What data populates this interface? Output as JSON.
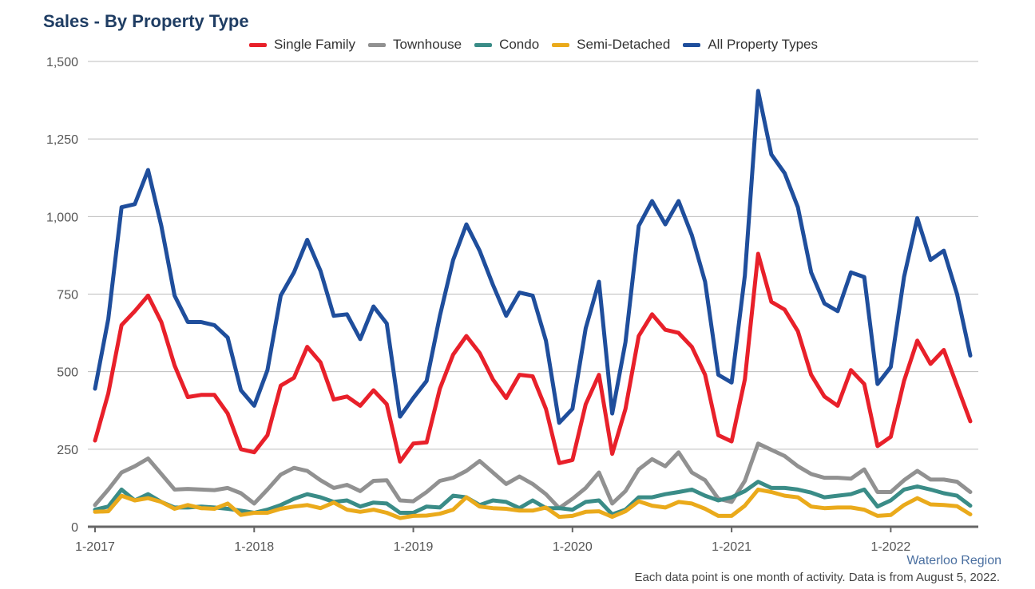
{
  "title": "Sales - By Property Type",
  "source": "Waterloo Region",
  "footnote": "Each data point is one month of activity. Data is from August 5, 2022.",
  "chart_data": {
    "type": "line",
    "title": "Sales - By Property Type",
    "xlabel": "",
    "ylabel": "",
    "ylim": [
      0,
      1500
    ],
    "yticks": [
      0,
      250,
      500,
      750,
      1000,
      1250,
      1500
    ],
    "ytick_labels": [
      "0",
      "250",
      "500",
      "750",
      "1,000",
      "1,250",
      "1,500"
    ],
    "xtick_labels": [
      "1-2017",
      "1-2018",
      "1-2019",
      "1-2020",
      "1-2021",
      "1-2022"
    ],
    "xtick_index": [
      0,
      12,
      24,
      36,
      48,
      60
    ],
    "x_start": "2017-01",
    "x_end": "2022-07",
    "grid": true,
    "legend": "top",
    "series": [
      {
        "name": "Single Family",
        "color": "#e8202a",
        "values": [
          278,
          430,
          650,
          695,
          745,
          660,
          520,
          418,
          425,
          425,
          365,
          250,
          240,
          295,
          455,
          480,
          580,
          530,
          410,
          420,
          390,
          440,
          395,
          210,
          268,
          272,
          445,
          555,
          615,
          560,
          475,
          415,
          490,
          485,
          380,
          205,
          215,
          395,
          490,
          235,
          380,
          615,
          685,
          635,
          625,
          580,
          490,
          295,
          275,
          475,
          880,
          725,
          700,
          630,
          490,
          420,
          390,
          505,
          460,
          260,
          290,
          470,
          600,
          525,
          570,
          455,
          340
        ]
      },
      {
        "name": "Townhouse",
        "color": "#919191",
        "values": [
          70,
          120,
          175,
          195,
          220,
          170,
          120,
          122,
          120,
          118,
          125,
          108,
          75,
          120,
          168,
          190,
          180,
          150,
          125,
          135,
          115,
          148,
          150,
          85,
          82,
          112,
          148,
          158,
          180,
          212,
          175,
          138,
          162,
          138,
          105,
          60,
          90,
          125,
          175,
          75,
          115,
          185,
          218,
          195,
          240,
          175,
          150,
          90,
          80,
          148,
          268,
          248,
          228,
          195,
          170,
          158,
          158,
          155,
          185,
          112,
          112,
          150,
          180,
          152,
          152,
          145,
          112
        ]
      },
      {
        "name": "Condo",
        "color": "#3a8c87",
        "values": [
          55,
          65,
          120,
          85,
          105,
          80,
          62,
          62,
          65,
          62,
          58,
          52,
          45,
          55,
          70,
          90,
          105,
          95,
          80,
          85,
          65,
          78,
          75,
          45,
          45,
          65,
          62,
          100,
          95,
          70,
          85,
          80,
          60,
          85,
          60,
          60,
          55,
          80,
          85,
          40,
          55,
          95,
          95,
          105,
          112,
          120,
          100,
          85,
          95,
          115,
          145,
          125,
          125,
          120,
          110,
          95,
          100,
          105,
          120,
          65,
          85,
          120,
          130,
          120,
          108,
          100,
          68
        ]
      },
      {
        "name": "Semi-Detached",
        "color": "#eaaa1b",
        "values": [
          48,
          50,
          100,
          85,
          92,
          80,
          58,
          70,
          60,
          58,
          75,
          38,
          45,
          45,
          58,
          65,
          70,
          60,
          78,
          55,
          48,
          55,
          45,
          28,
          35,
          36,
          42,
          55,
          95,
          65,
          60,
          58,
          52,
          52,
          62,
          32,
          35,
          48,
          50,
          32,
          50,
          82,
          68,
          62,
          80,
          75,
          58,
          35,
          35,
          68,
          120,
          112,
          100,
          95,
          65,
          60,
          62,
          62,
          55,
          35,
          38,
          70,
          92,
          72,
          70,
          66,
          40
        ]
      },
      {
        "name": "All Property Types",
        "color": "#1f4e9c",
        "values": [
          445,
          670,
          1030,
          1040,
          1150,
          970,
          745,
          660,
          660,
          650,
          610,
          440,
          390,
          505,
          745,
          820,
          925,
          825,
          680,
          685,
          605,
          710,
          655,
          355,
          415,
          470,
          680,
          860,
          975,
          890,
          780,
          680,
          755,
          745,
          600,
          335,
          380,
          640,
          790,
          365,
          595,
          970,
          1050,
          975,
          1050,
          940,
          790,
          490,
          465,
          810,
          1405,
          1200,
          1140,
          1030,
          820,
          720,
          695,
          820,
          805,
          460,
          515,
          805,
          995,
          860,
          890,
          750,
          552
        ]
      }
    ]
  }
}
